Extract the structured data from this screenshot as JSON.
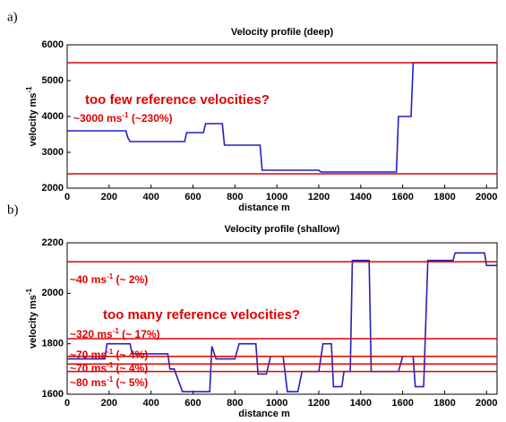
{
  "chart_data": [
    {
      "type": "line",
      "panel_label": "a)",
      "title": "Velocity profile (deep)",
      "x_label": "distance m",
      "y_label": {
        "text": "velocity ms",
        "sup": "-1"
      },
      "xlim": [
        0,
        2050
      ],
      "xticks": [
        0,
        200,
        400,
        600,
        800,
        1000,
        1200,
        1400,
        1600,
        1800,
        2000
      ],
      "ylim": [
        2000,
        6000
      ],
      "yticks": [
        2000,
        3000,
        4000,
        5000,
        6000
      ],
      "color": "#2020c0",
      "x": [
        0,
        280,
        290,
        300,
        560,
        570,
        650,
        660,
        740,
        750,
        920,
        930,
        1200,
        1210,
        1570,
        1580,
        1640,
        1650,
        2050
      ],
      "values": [
        3600,
        3600,
        3400,
        3300,
        3300,
        3550,
        3550,
        3800,
        3800,
        3200,
        3200,
        2500,
        2500,
        2450,
        2450,
        4000,
        4000,
        5500,
        5500
      ],
      "reference_lines": [
        2400,
        5500
      ],
      "reference_color": "#e00000",
      "annotations": [
        {
          "text": "too few reference velocities?"
        },
        {
          "text": "~3000 ms",
          "sup": "-1",
          "after": " (~230%)"
        }
      ]
    },
    {
      "type": "line",
      "panel_label": "b)",
      "title": "Velocity profile (shallow)",
      "x_label": "distance m",
      "y_label": {
        "text": "velocity ms",
        "sup": "-1"
      },
      "xlim": [
        0,
        2050
      ],
      "xticks": [
        0,
        200,
        400,
        600,
        800,
        1000,
        1200,
        1400,
        1600,
        1800,
        2000
      ],
      "ylim": [
        1600,
        2200
      ],
      "yticks": [
        1600,
        1800,
        2000,
        2200
      ],
      "color": "#2020c0",
      "x": [
        0,
        180,
        190,
        300,
        310,
        480,
        490,
        510,
        550,
        680,
        690,
        710,
        800,
        820,
        900,
        910,
        950,
        970,
        1030,
        1050,
        1100,
        1120,
        1200,
        1220,
        1260,
        1270,
        1310,
        1320,
        1350,
        1360,
        1440,
        1450,
        1580,
        1600,
        1650,
        1660,
        1700,
        1720,
        1840,
        1850,
        1990,
        2000,
        2050
      ],
      "values": [
        1740,
        1740,
        1800,
        1800,
        1760,
        1760,
        1700,
        1700,
        1610,
        1610,
        1790,
        1740,
        1740,
        1800,
        1800,
        1680,
        1680,
        1750,
        1750,
        1610,
        1610,
        1690,
        1690,
        1800,
        1800,
        1630,
        1630,
        1690,
        1690,
        2130,
        2130,
        1690,
        1690,
        1750,
        1750,
        1630,
        1630,
        2130,
        2130,
        2160,
        2160,
        2110,
        2110
      ],
      "reference_lines": [
        2125,
        1820,
        1750,
        1720,
        1690
      ],
      "reference_color": "#e00000",
      "annotations": [
        {
          "text": "~40 ms",
          "sup": "-1",
          "after": " (~ 2%)"
        },
        {
          "text": "too many reference velocities?"
        },
        {
          "text": "~320 ms",
          "sup": "-1",
          "after": " (~ 17%)"
        },
        {
          "text": "~70 ms",
          "sup": "-1",
          "after": " (~ 4%)"
        },
        {
          "text": "~70 ms",
          "sup": "-1",
          "after": " (~ 4%)"
        },
        {
          "text": "~80 ms",
          "sup": "-1",
          "after": " (~ 5%)"
        }
      ]
    }
  ]
}
